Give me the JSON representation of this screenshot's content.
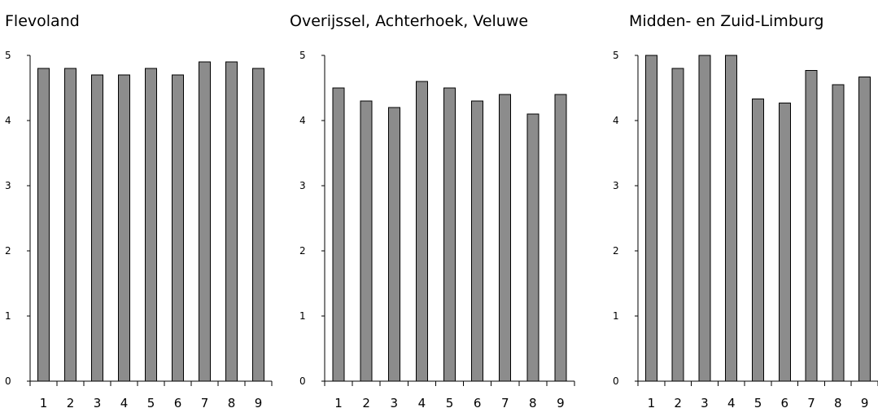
{
  "chart_data": [
    {
      "type": "bar",
      "title": "Flevoland",
      "categories": [
        "1",
        "2",
        "3",
        "4",
        "5",
        "6",
        "7",
        "8",
        "9"
      ],
      "values": [
        4.8,
        4.8,
        4.7,
        4.7,
        4.8,
        4.7,
        4.9,
        4.9,
        4.8
      ],
      "ylim": [
        0,
        5
      ],
      "yticks": [
        "0",
        "1",
        "2",
        "3",
        "4",
        "5"
      ],
      "bar_color": "#8c8c8c",
      "grid": false
    },
    {
      "type": "bar",
      "title": "Overijssel, Achterhoek, Veluwe",
      "categories": [
        "1",
        "2",
        "3",
        "4",
        "5",
        "6",
        "7",
        "8",
        "9"
      ],
      "values": [
        4.5,
        4.3,
        4.2,
        4.6,
        4.5,
        4.3,
        4.4,
        4.1,
        4.4
      ],
      "ylim": [
        0,
        5
      ],
      "yticks": [
        "0",
        "1",
        "2",
        "3",
        "4",
        "5"
      ],
      "bar_color": "#8c8c8c",
      "grid": false
    },
    {
      "type": "bar",
      "title": "Midden- en Zuid-Limburg",
      "categories": [
        "1",
        "2",
        "3",
        "4",
        "5",
        "6",
        "7",
        "8",
        "9"
      ],
      "values": [
        5.0,
        4.8,
        5.0,
        5.0,
        4.33,
        4.27,
        4.77,
        4.55,
        4.67
      ],
      "ylim": [
        0,
        5
      ],
      "yticks": [
        "0",
        "1",
        "2",
        "3",
        "4",
        "5"
      ],
      "bar_color": "#8c8c8c",
      "grid": false
    }
  ]
}
